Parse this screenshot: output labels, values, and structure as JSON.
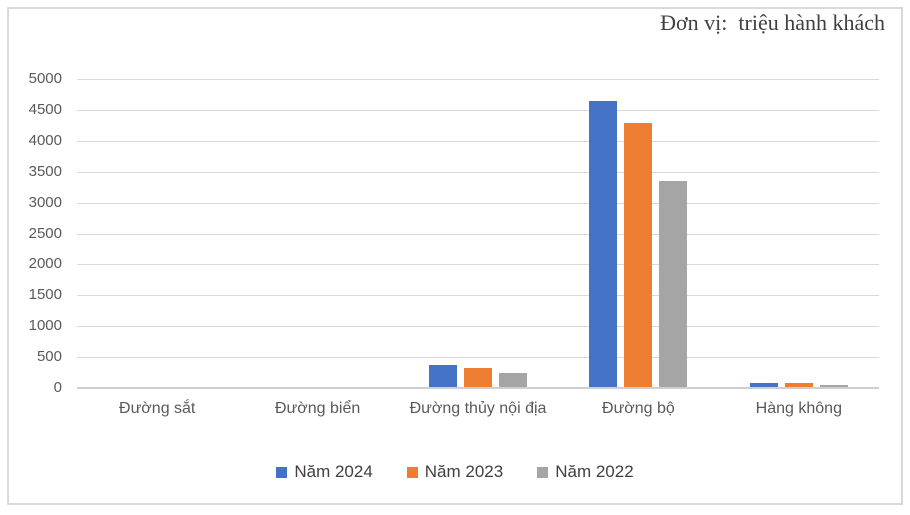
{
  "chart_data": {
    "type": "bar",
    "title": "Đơn vị:  triệu hành khách",
    "categories": [
      "Đường sắt",
      "Đường biển",
      "Đường thủy nội địa",
      "Đường bộ",
      "Hàng không"
    ],
    "series": [
      {
        "name": "Năm 2024",
        "color": "#4472C4",
        "values": [
          0,
          0,
          370,
          4650,
          80
        ]
      },
      {
        "name": "Năm 2023",
        "color": "#ED7D31",
        "values": [
          0,
          0,
          320,
          4290,
          74
        ]
      },
      {
        "name": "Năm 2022",
        "color": "#A5A5A5",
        "values": [
          0,
          0,
          245,
          3350,
          55
        ]
      }
    ],
    "xlabel": "",
    "ylabel": "",
    "ylim": [
      0,
      5000
    ],
    "ytick_step": 500,
    "yticks": [
      0,
      500,
      1000,
      1500,
      2000,
      2500,
      3000,
      3500,
      4000,
      4500,
      5000
    ],
    "grid": true,
    "legend_position": "bottom"
  },
  "colors": {
    "background": "#FFFFFF",
    "frame_border": "#D9D9D9",
    "gridline": "#D9D9D9",
    "axis_line": "#D1CECE",
    "tick_label": "#595959",
    "category_label": "#595959",
    "legend_text": "#404040",
    "title_text": "#404040"
  }
}
